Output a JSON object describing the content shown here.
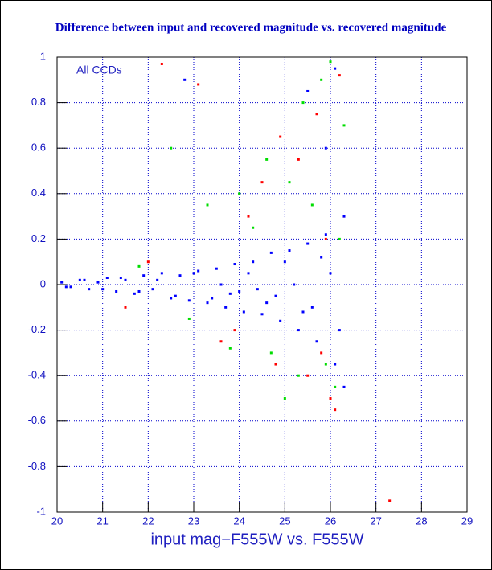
{
  "chart_data": {
    "type": "scatter",
    "title": "Difference between input and recovered magnitude vs. recovered magnitude",
    "x_label": "input mag−F555W vs. F555W",
    "annotation": "All CCDs",
    "xlim": [
      20,
      29
    ],
    "xticks": [
      20,
      21,
      22,
      23,
      24,
      25,
      26,
      27,
      28,
      29
    ],
    "ylim": [
      -1,
      1
    ],
    "yticks": [
      -1,
      -0.8,
      -0.6,
      -0.4,
      -0.2,
      0,
      0.2,
      0.4,
      0.6,
      0.8,
      1
    ],
    "grid": true,
    "series": [
      {
        "color": "#ff0000",
        "x": [
          22.3,
          23.1,
          23.6,
          24.2,
          24.8,
          25.3,
          25.7,
          26.0,
          26.2,
          22.0,
          24.5,
          25.5,
          26.3,
          25.9,
          21.5,
          23.9,
          24.9,
          25.8,
          26.1,
          27.3
        ],
        "y": [
          0.97,
          0.88,
          -0.25,
          0.3,
          -0.35,
          0.55,
          0.75,
          -0.5,
          0.92,
          0.1,
          0.45,
          -0.4,
          0.3,
          0.2,
          -0.1,
          -0.2,
          0.65,
          -0.3,
          -0.55,
          -0.95
        ]
      },
      {
        "color": "#00dd00",
        "x": [
          22.5,
          23.3,
          23.8,
          24.3,
          24.7,
          25.1,
          25.4,
          25.8,
          26.1,
          26.3,
          21.8,
          24.0,
          25.0,
          25.6,
          26.2,
          22.9,
          24.6,
          25.9,
          26.0,
          25.3
        ],
        "y": [
          0.6,
          0.35,
          -0.28,
          0.25,
          -0.3,
          0.45,
          0.8,
          0.9,
          -0.45,
          0.7,
          0.08,
          0.4,
          -0.5,
          0.35,
          0.2,
          -0.15,
          0.55,
          -0.35,
          0.98,
          -0.4
        ]
      },
      {
        "color": "#0000ff",
        "x": [
          20.1,
          20.3,
          20.5,
          20.7,
          20.9,
          21.1,
          21.3,
          21.5,
          21.7,
          21.9,
          22.1,
          22.3,
          22.5,
          22.7,
          22.9,
          23.1,
          23.3,
          23.5,
          23.7,
          23.9,
          24.1,
          24.3,
          24.5,
          24.7,
          24.9,
          25.1,
          25.3,
          25.5,
          25.7,
          25.9,
          26.1,
          26.3,
          20.2,
          20.6,
          21.0,
          21.4,
          21.8,
          22.2,
          22.6,
          23.0,
          23.4,
          23.8,
          24.2,
          24.6,
          25.0,
          25.4,
          25.8,
          26.2,
          24.0,
          24.8,
          25.6,
          26.0,
          25.2,
          24.4,
          23.6,
          26.3,
          25.9,
          25.5,
          22.8,
          26.1
        ],
        "y": [
          0.01,
          -0.01,
          0.02,
          -0.02,
          0.01,
          0.03,
          -0.03,
          0.02,
          -0.04,
          0.04,
          -0.02,
          0.05,
          -0.06,
          0.04,
          -0.07,
          0.06,
          -0.08,
          0.07,
          -0.1,
          0.09,
          -0.12,
          0.1,
          -0.13,
          0.14,
          -0.16,
          0.15,
          -0.2,
          0.18,
          -0.25,
          0.22,
          -0.35,
          0.3,
          -0.01,
          0.02,
          -0.02,
          0.03,
          -0.03,
          0.02,
          -0.05,
          0.05,
          -0.06,
          -0.04,
          0.05,
          -0.08,
          0.1,
          -0.12,
          0.12,
          -0.2,
          -0.03,
          -0.05,
          -0.1,
          0.05,
          0.0,
          -0.02,
          0.0,
          -0.45,
          0.6,
          0.85,
          0.9,
          0.95
        ]
      }
    ]
  }
}
